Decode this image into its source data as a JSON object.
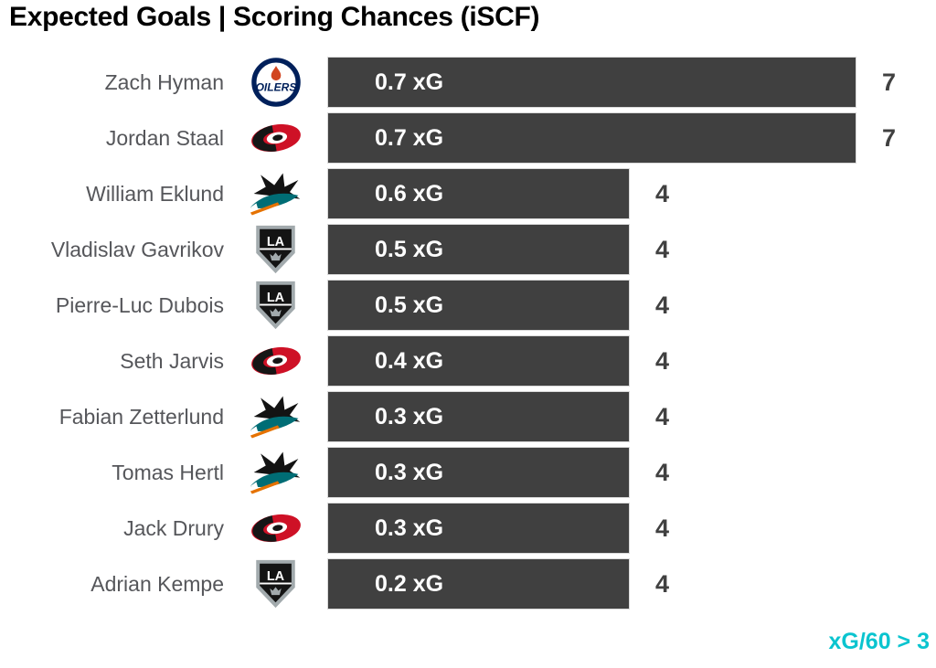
{
  "title": "Expected Goals | Scoring Chances (iSCF)",
  "footer_note": "xG/60 > 3",
  "colors": {
    "title": "#000000",
    "player_name": "#55565A",
    "bar": "#404040",
    "bar_label": "#FFFFFF",
    "count": "#404040",
    "accent": "#0AC4CF",
    "oilers_navy": "#00205B",
    "oilers_orange": "#D14520",
    "hurricanes_red": "#CE1126",
    "sharks_teal": "#006D75",
    "kings_silver": "#A2AAAD"
  },
  "rows": [
    {
      "player": "Zach Hyman",
      "team": "oilers",
      "xg": 0.7,
      "xg_label": "0.7 xG",
      "iscf": 7
    },
    {
      "player": "Jordan Staal",
      "team": "hurricanes",
      "xg": 0.7,
      "xg_label": "0.7 xG",
      "iscf": 7
    },
    {
      "player": "William Eklund",
      "team": "sharks",
      "xg": 0.6,
      "xg_label": "0.6 xG",
      "iscf": 4
    },
    {
      "player": "Vladislav Gavrikov",
      "team": "kings",
      "xg": 0.5,
      "xg_label": "0.5 xG",
      "iscf": 4
    },
    {
      "player": "Pierre-Luc Dubois",
      "team": "kings",
      "xg": 0.5,
      "xg_label": "0.5 xG",
      "iscf": 4
    },
    {
      "player": "Seth Jarvis",
      "team": "hurricanes",
      "xg": 0.4,
      "xg_label": "0.4 xG",
      "iscf": 4
    },
    {
      "player": "Fabian Zetterlund",
      "team": "sharks",
      "xg": 0.3,
      "xg_label": "0.3 xG",
      "iscf": 4
    },
    {
      "player": "Tomas Hertl",
      "team": "sharks",
      "xg": 0.3,
      "xg_label": "0.3 xG",
      "iscf": 4
    },
    {
      "player": "Jack Drury",
      "team": "hurricanes",
      "xg": 0.3,
      "xg_label": "0.3 xG",
      "iscf": 4
    },
    {
      "player": "Adrian Kempe",
      "team": "kings",
      "xg": 0.2,
      "xg_label": "0.2 xG",
      "iscf": 4
    }
  ],
  "chart_data": {
    "type": "bar",
    "orientation": "horizontal",
    "title": "Expected Goals | Scoring Chances (iSCF)",
    "categories": [
      "Zach Hyman",
      "Jordan Staal",
      "William Eklund",
      "Vladislav Gavrikov",
      "Pierre-Luc Dubois",
      "Seth Jarvis",
      "Fabian Zetterlund",
      "Tomas Hertl",
      "Jack Drury",
      "Adrian Kempe"
    ],
    "series": [
      {
        "name": "xG",
        "role": "bar-label",
        "values": [
          0.7,
          0.7,
          0.6,
          0.5,
          0.5,
          0.4,
          0.3,
          0.3,
          0.3,
          0.2
        ]
      },
      {
        "name": "iSCF",
        "role": "bar-length",
        "values": [
          7,
          7,
          4,
          4,
          4,
          4,
          4,
          4,
          4,
          4
        ]
      }
    ],
    "value_range": [
      0,
      7
    ],
    "grid": false,
    "legend": false,
    "axes_shown": false,
    "annotation": "xG/60 > 3"
  }
}
